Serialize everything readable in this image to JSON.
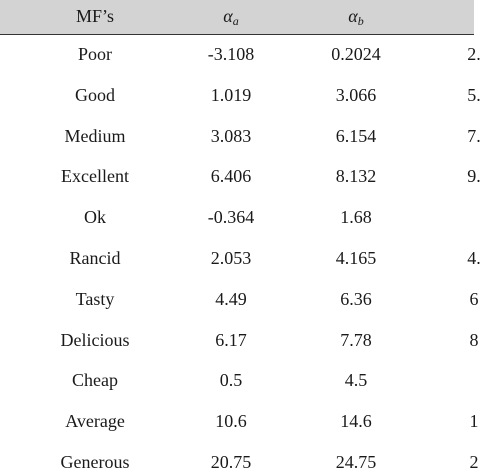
{
  "table": {
    "headers": {
      "mf": "MF’s",
      "alpha_symbol": "α",
      "alpha_a_sub": "a",
      "alpha_b_sub": "b"
    },
    "rows": [
      {
        "mf": "Poor",
        "alpha_a": "-3.108",
        "alpha_b": "0.2024",
        "alpha_c": "2."
      },
      {
        "mf": "Good",
        "alpha_a": "1.019",
        "alpha_b": "3.066",
        "alpha_c": "5."
      },
      {
        "mf": "Medium",
        "alpha_a": "3.083",
        "alpha_b": "6.154",
        "alpha_c": "7."
      },
      {
        "mf": "Excellent",
        "alpha_a": "6.406",
        "alpha_b": "8.132",
        "alpha_c": "9."
      },
      {
        "mf": "Ok",
        "alpha_a": "-0.364",
        "alpha_b": "1.68",
        "alpha_c": ""
      },
      {
        "mf": "Rancid",
        "alpha_a": "2.053",
        "alpha_b": "4.165",
        "alpha_c": "4."
      },
      {
        "mf": "Tasty",
        "alpha_a": "4.49",
        "alpha_b": "6.36",
        "alpha_c": "6"
      },
      {
        "mf": "Delicious",
        "alpha_a": "6.17",
        "alpha_b": "7.78",
        "alpha_c": "8"
      },
      {
        "mf": "Cheap",
        "alpha_a": "0.5",
        "alpha_b": "4.5",
        "alpha_c": ""
      },
      {
        "mf": "Average",
        "alpha_a": "10.6",
        "alpha_b": "14.6",
        "alpha_c": "1"
      },
      {
        "mf": "Generous",
        "alpha_a": "20.75",
        "alpha_b": "24.75",
        "alpha_c": "2"
      }
    ]
  },
  "colors": {
    "header_background": "#d3d3d3",
    "text": "#1a1a1a",
    "rule": "#333333"
  }
}
